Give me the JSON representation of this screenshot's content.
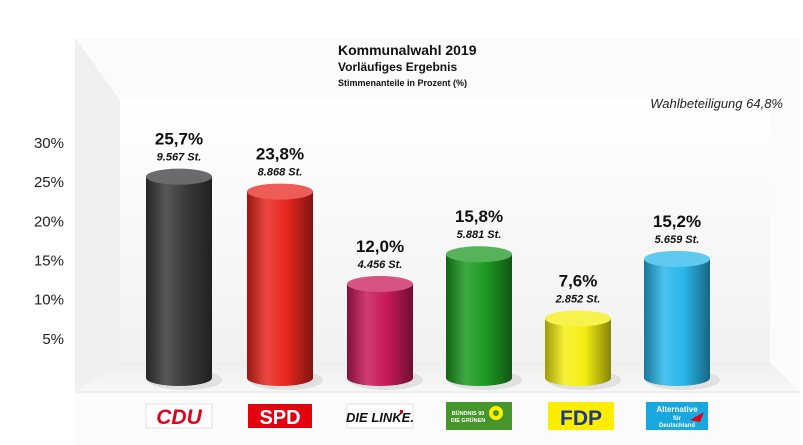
{
  "chart_data": {
    "type": "bar",
    "title": "Kommunalwahl 2019",
    "subtitle": "Vorläufiges Ergebnis",
    "note": "Stimmenanteile in Prozent (%)",
    "turnout_label": "Wahlbeteiligung 64,8%",
    "categories": [
      "CDU",
      "SPD",
      "DIE LINKE.",
      "BÜNDNIS 90 DIE GRÜNEN",
      "FDP",
      "Alternative für Deutschland"
    ],
    "values": [
      25.7,
      23.8,
      12.0,
      15.8,
      7.6,
      15.2
    ],
    "value_labels": [
      "25,7%",
      "23,8%",
      "12,0%",
      "15,8%",
      "7,6%",
      "15,2%"
    ],
    "vote_labels": [
      "9.567 St.",
      "8.868 St.",
      "4.456 St.",
      "5.881 St.",
      "2.852 St.",
      "5.659 St."
    ],
    "colors": [
      "#3a3a3c",
      "#e8261f",
      "#c8195a",
      "#1d9a22",
      "#f5ee12",
      "#29b7ea"
    ],
    "yticks": [
      "5%",
      "10%",
      "15%",
      "20%",
      "25%",
      "30%"
    ],
    "ylim": [
      0,
      30
    ],
    "grid": false,
    "legend": "none"
  },
  "logos": {
    "cdu": "CDU",
    "spd": "SPD",
    "linke": "DIE LINKE.",
    "gruene_line1": "BÜNDNIS 90",
    "gruene_line2": "DIE GRÜNEN",
    "fdp": "FDP",
    "afd_line1": "Alternative",
    "afd_line2": "für",
    "afd_line3": "Deutschland"
  }
}
